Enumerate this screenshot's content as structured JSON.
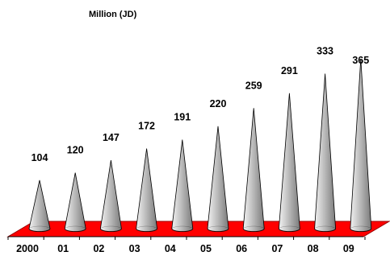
{
  "chart_data": {
    "type": "bar",
    "mark": "cone",
    "title": "Million (JD)",
    "xlabel": "",
    "ylabel": "",
    "categories": [
      "2000",
      "01",
      "02",
      "03",
      "04",
      "05",
      "06",
      "07",
      "08",
      "09"
    ],
    "values": [
      104,
      120,
      147,
      172,
      191,
      220,
      259,
      291,
      333,
      365
    ],
    "data_labels": [
      "104",
      "120",
      "147",
      "172",
      "191",
      "220",
      "259",
      "291",
      "333",
      "365"
    ],
    "ylim": [
      0,
      365
    ],
    "grid": false,
    "legend": "none",
    "colors": {
      "floor": "#ff0000",
      "floor_edge": "#990000",
      "cone_light": "#f2f2f2",
      "cone_mid": "#bdbdbd",
      "cone_dark": "#7a7a7a",
      "cone_outline": "#000000",
      "axis": "#000000",
      "text": "#000000"
    }
  }
}
